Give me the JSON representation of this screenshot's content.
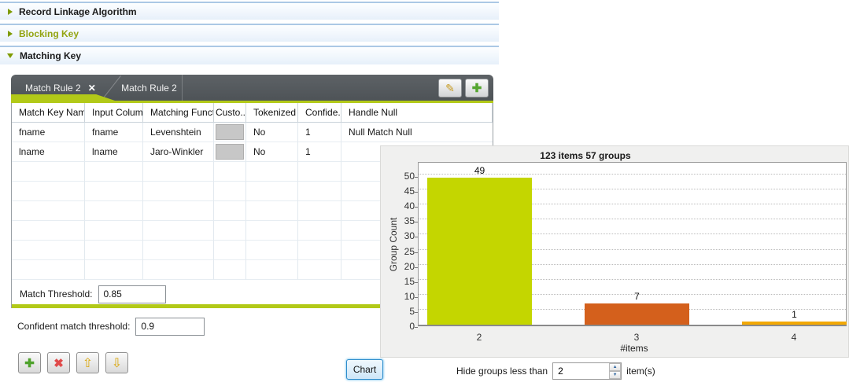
{
  "accordion": {
    "sections": [
      {
        "label": "Record Linkage Algorithm",
        "expanded": false
      },
      {
        "label": "Blocking Key",
        "expanded": false
      },
      {
        "label": "Matching Key",
        "expanded": true
      }
    ]
  },
  "match_rules": {
    "tabs": [
      {
        "label": "Match Rule 2"
      },
      {
        "label": "Match Rule 2"
      }
    ],
    "close_glyph": "✕",
    "edit_glyph": "✎",
    "add_glyph": "✚"
  },
  "table": {
    "columns": [
      "Match Key Name",
      "Input Column",
      "Matching Functi...",
      "Custo...",
      "Tokenized ...",
      "Confide...",
      "Handle Null"
    ],
    "rows": [
      [
        "fname",
        "fname",
        "Levenshtein",
        "",
        "No",
        "1",
        "Null Match Null"
      ],
      [
        "lname",
        "lname",
        "Jaro-Winkler",
        "",
        "No",
        "1",
        ""
      ]
    ],
    "empty_rows": 6
  },
  "match_threshold": {
    "label": "Match Threshold:",
    "value": "0.85"
  },
  "confident_threshold": {
    "label": "Confident match threshold:",
    "value": "0.9"
  },
  "actions": {
    "chart_label": "Chart",
    "add_glyph": "✚",
    "delete_glyph": "✖",
    "up_glyph": "⇧",
    "down_glyph": "⇩"
  },
  "hide_groups": {
    "label_before": "Hide groups less than",
    "value": "2",
    "label_after": "item(s)"
  },
  "chart_data": {
    "type": "bar",
    "title": "123 items 57 groups",
    "xlabel": "#items",
    "ylabel": "Group Count",
    "categories": [
      "2",
      "3",
      "4"
    ],
    "values": [
      49,
      7,
      1
    ],
    "value_labels": [
      "49",
      "7",
      "1"
    ],
    "bar_colors": [
      "#c4d600",
      "#d4601c",
      "#f2a804"
    ],
    "ylim": [
      0,
      50
    ],
    "ytick_step": 5,
    "grid": "dotted-horizontal",
    "legend": "none"
  },
  "colors": {
    "accent_green": "#b2c918",
    "olive_text": "#93a410",
    "tab_bar": "#54585c",
    "chart_panel_bg": "#f0f0ef"
  }
}
